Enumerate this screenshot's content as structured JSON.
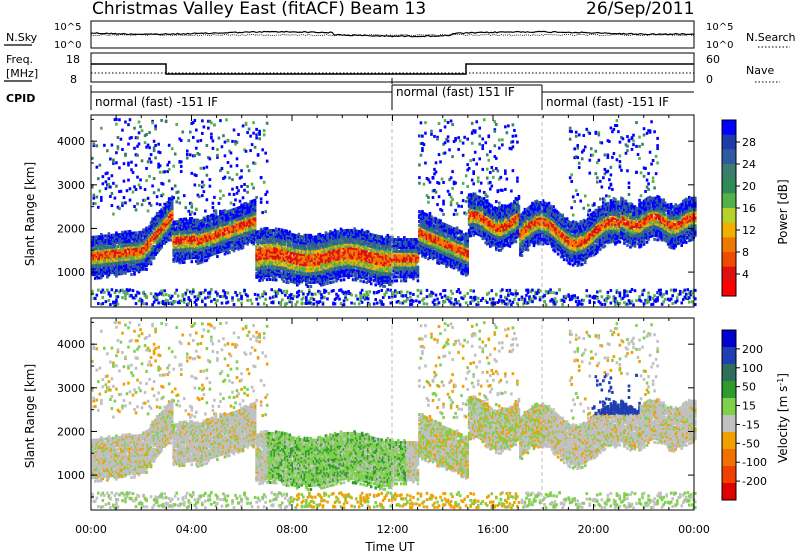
{
  "header": {
    "title": "Christmas Valley East (fitACF)",
    "beam": "Beam 13",
    "date": "26/Sep/2011"
  },
  "strip_panels": {
    "nsky_label": "N.Sky",
    "nsky_ticks": [
      "10^5",
      "10^0"
    ],
    "nsearch_label": "N.Search",
    "nsearch_ticks": [
      "10^5",
      "10^0"
    ],
    "freq_label_1": "Freq.",
    "freq_label_2": "[MHz]",
    "freq_ticks": [
      "18",
      "8"
    ],
    "nave_label": "Nave",
    "nave_ticks": [
      "60",
      "0"
    ],
    "cpid_label": "CPID",
    "cpid_segments": [
      {
        "label": "normal (fast) -151 IF",
        "start_h": 0,
        "end_h": 12
      },
      {
        "label": "normal (fast) 151 IF",
        "start_h": 12,
        "end_h": 18
      },
      {
        "label": "normal (fast) -151 IF",
        "start_h": 18,
        "end_h": 24
      }
    ]
  },
  "chart_data": [
    {
      "type": "heatmap",
      "title": "",
      "xlabel": "",
      "ylabel": "Slant Range [km]",
      "xlim": [
        0,
        24
      ],
      "ylim": [
        200,
        4600
      ],
      "x_ticks": [
        0,
        4,
        8,
        12,
        16,
        20,
        24
      ],
      "y_ticks": [
        1000,
        2000,
        3000,
        4000
      ],
      "colorbar": {
        "label": "Power [dB]",
        "ticks": [
          "4",
          "8",
          "12",
          "16",
          "20",
          "24",
          "28"
        ],
        "colors": [
          "#0000ff",
          "#1e3ca8",
          "#2f5aa0",
          "#3a7d6e",
          "#2e8b57",
          "#55b04a",
          "#b8d02a",
          "#f0b000",
          "#f07800",
          "#f04a00",
          "#e01010",
          "#ff0000"
        ]
      }
    },
    {
      "type": "heatmap",
      "title": "",
      "xlabel": "Time UT",
      "ylabel": "Slant Range [km]",
      "xlim": [
        0,
        24
      ],
      "ylim": [
        200,
        4600
      ],
      "x_ticks": [
        0,
        4,
        8,
        12,
        16,
        20,
        24
      ],
      "x_tick_labels": [
        "00:00",
        "04:00",
        "08:00",
        "12:00",
        "16:00",
        "20:00",
        "00:00"
      ],
      "y_ticks": [
        1000,
        2000,
        3000,
        4000
      ],
      "colorbar": {
        "label": "Velocity [m s",
        "label_sup": "-1",
        "label_end": "]",
        "ticks": [
          "200",
          "100",
          "50",
          "15",
          "-15",
          "-50",
          "-100",
          "-200"
        ],
        "colors": [
          "#0000d0",
          "#1f3fb0",
          "#2e6e5c",
          "#2e9b2e",
          "#7fd04a",
          "#c0c0c0",
          "#f0a000",
          "#f07000",
          "#f04000",
          "#e00000"
        ]
      }
    }
  ]
}
